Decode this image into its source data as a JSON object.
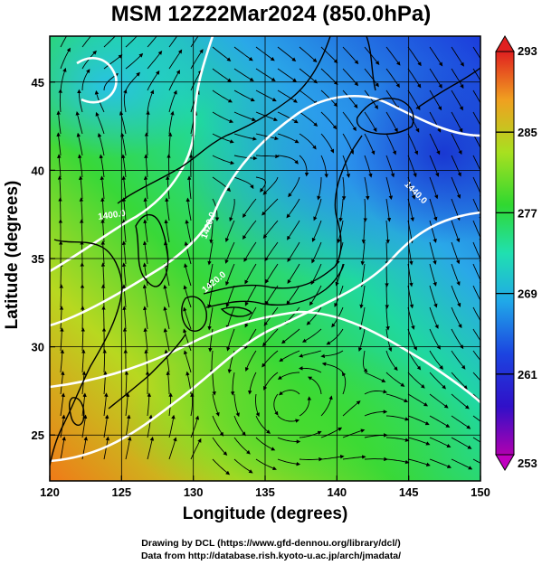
{
  "title": "MSM 12Z22Mar2024 (850.0hPa)",
  "chart_data": {
    "type": "map",
    "xlabel": "Longitude (degrees)",
    "ylabel": "Latitude  (degrees)",
    "xlim": [
      120,
      150
    ],
    "ylim": [
      22.4,
      47.6
    ],
    "xticks": [
      "120",
      "125",
      "130",
      "135",
      "140",
      "145",
      "150"
    ],
    "yticks": [
      "25",
      "30",
      "35",
      "40",
      "45"
    ],
    "grid": true,
    "colorbar": {
      "ticks": [
        "293",
        "285",
        "277",
        "269",
        "261",
        "253"
      ],
      "range": [
        253,
        293
      ],
      "placement": "right"
    },
    "contour_labels": [
      "1400.0",
      "1420.0",
      "1420.0",
      "1440.0"
    ],
    "features": [
      "streamlines",
      "coastlines",
      "geopotential-height-contours",
      "temperature-shading"
    ]
  },
  "credits": {
    "line1": "Drawing by DCL (https://www.gfd-dennou.org/library/dcl/)",
    "line2": "Data from http://database.rish.kyoto-u.ac.jp/arch/jmadata/"
  },
  "colors": {
    "warm": "#f07a18",
    "mid": "#38d838",
    "cool": "#2aa8e8",
    "cold": "#1c3cdc",
    "contour": "#ffffff",
    "coast": "#000000"
  }
}
